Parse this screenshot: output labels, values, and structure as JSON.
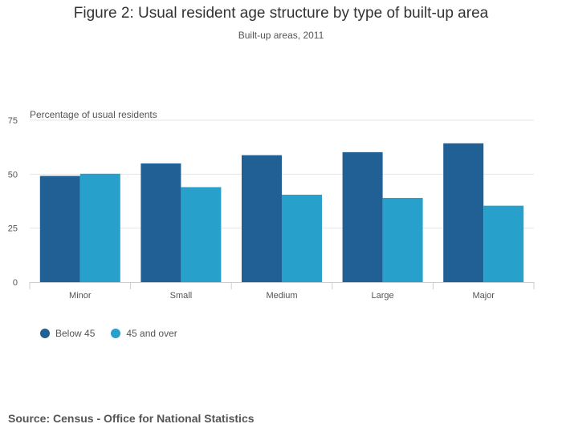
{
  "title": "Figure 2: Usual resident age structure by type of built-up area",
  "subtitle": "Built-up areas, 2011",
  "source": "Source: Census - Office for National Statistics",
  "colors": {
    "below45": "#206095",
    "over45": "#27a0cc",
    "grid": "#e6e6e6",
    "axis": "#cccccc",
    "text": "#555555"
  },
  "chart_data": {
    "type": "bar",
    "title": "Figure 2: Usual resident age structure by type of built-up area",
    "subtitle": "Built-up areas, 2011",
    "ylabel": "Percentage of usual residents",
    "xlabel": "",
    "categories": [
      "Minor",
      "Small",
      "Medium",
      "Large",
      "Major"
    ],
    "series": [
      {
        "name": "Below 45",
        "values": [
          49.2,
          55.0,
          58.8,
          60.2,
          64.3
        ]
      },
      {
        "name": "45 and over",
        "values": [
          50.2,
          44.0,
          40.5,
          39.0,
          35.4
        ]
      }
    ],
    "ylim": [
      0,
      75
    ],
    "yticks": [
      0,
      25,
      50,
      75
    ],
    "grid": true,
    "legend_position": "bottom-left"
  }
}
